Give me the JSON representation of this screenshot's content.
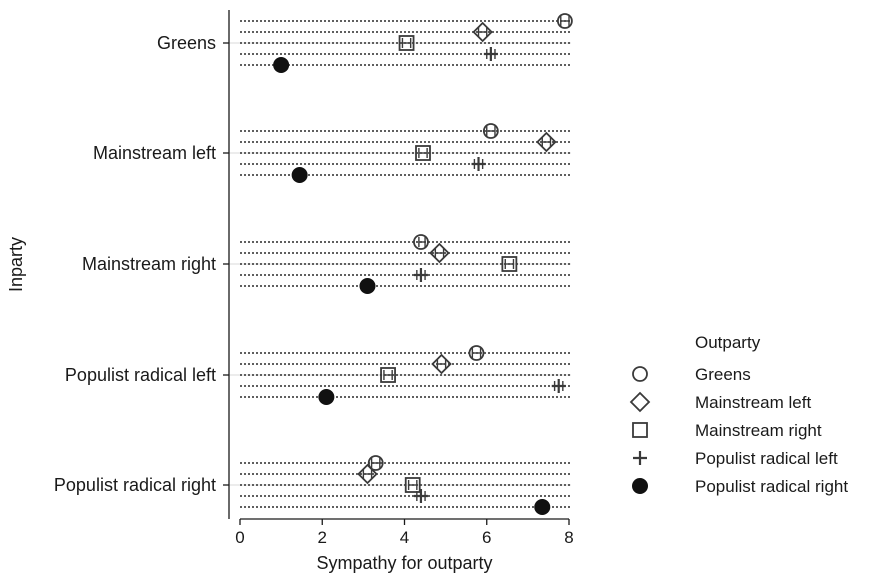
{
  "chart_data": {
    "type": "scatter",
    "subtype": "dot-plot-with-confidence-intervals",
    "xlabel": "Sympathy for outparty",
    "ylabel": "Inparty",
    "xlim": [
      0,
      8
    ],
    "xticks": [
      0,
      2,
      4,
      6,
      8
    ],
    "xtick_labels": [
      "0",
      "2",
      "4",
      "6",
      "8"
    ],
    "grid": true,
    "legend_position": "right",
    "legend_title": "Outparty",
    "categories": [
      "Greens",
      "Mainstream left",
      "Mainstream right",
      "Populist radical left",
      "Populist radical right"
    ],
    "series": [
      {
        "name": "Greens",
        "marker": "circle-hollow",
        "values": [
          7.9,
          6.1,
          4.4,
          5.75,
          3.3
        ],
        "ci": [
          [
            7.8,
            8.0
          ],
          [
            6.0,
            6.2
          ],
          [
            4.35,
            4.5
          ],
          [
            5.65,
            5.85
          ],
          [
            3.2,
            3.4
          ]
        ]
      },
      {
        "name": "Mainstream left",
        "marker": "diamond-hollow",
        "values": [
          5.9,
          7.45,
          4.85,
          4.9,
          3.1
        ],
        "ci": [
          [
            5.8,
            6.0
          ],
          [
            7.35,
            7.55
          ],
          [
            4.75,
            4.95
          ],
          [
            4.8,
            5.0
          ],
          [
            3.0,
            3.2
          ]
        ]
      },
      {
        "name": "Mainstream right",
        "marker": "square-hollow",
        "values": [
          4.05,
          4.45,
          6.55,
          3.6,
          4.2
        ],
        "ci": [
          [
            3.95,
            4.15
          ],
          [
            4.35,
            4.55
          ],
          [
            6.45,
            6.65
          ],
          [
            3.5,
            3.7
          ],
          [
            4.1,
            4.3
          ]
        ]
      },
      {
        "name": "Populist radical left",
        "marker": "plus",
        "values": [
          6.1,
          5.8,
          4.4,
          7.75,
          4.4
        ],
        "ci": [
          [
            6.0,
            6.2
          ],
          [
            5.7,
            5.9
          ],
          [
            4.3,
            4.5
          ],
          [
            7.65,
            7.85
          ],
          [
            4.3,
            4.5
          ]
        ]
      },
      {
        "name": "Populist radical right",
        "marker": "circle-filled",
        "values": [
          1.0,
          1.45,
          3.1,
          2.1,
          7.35
        ],
        "ci": [
          [
            1.0,
            1.0
          ],
          [
            1.45,
            1.45
          ],
          [
            3.1,
            3.1
          ],
          [
            2.1,
            2.1
          ],
          [
            7.35,
            7.35
          ]
        ]
      }
    ]
  }
}
